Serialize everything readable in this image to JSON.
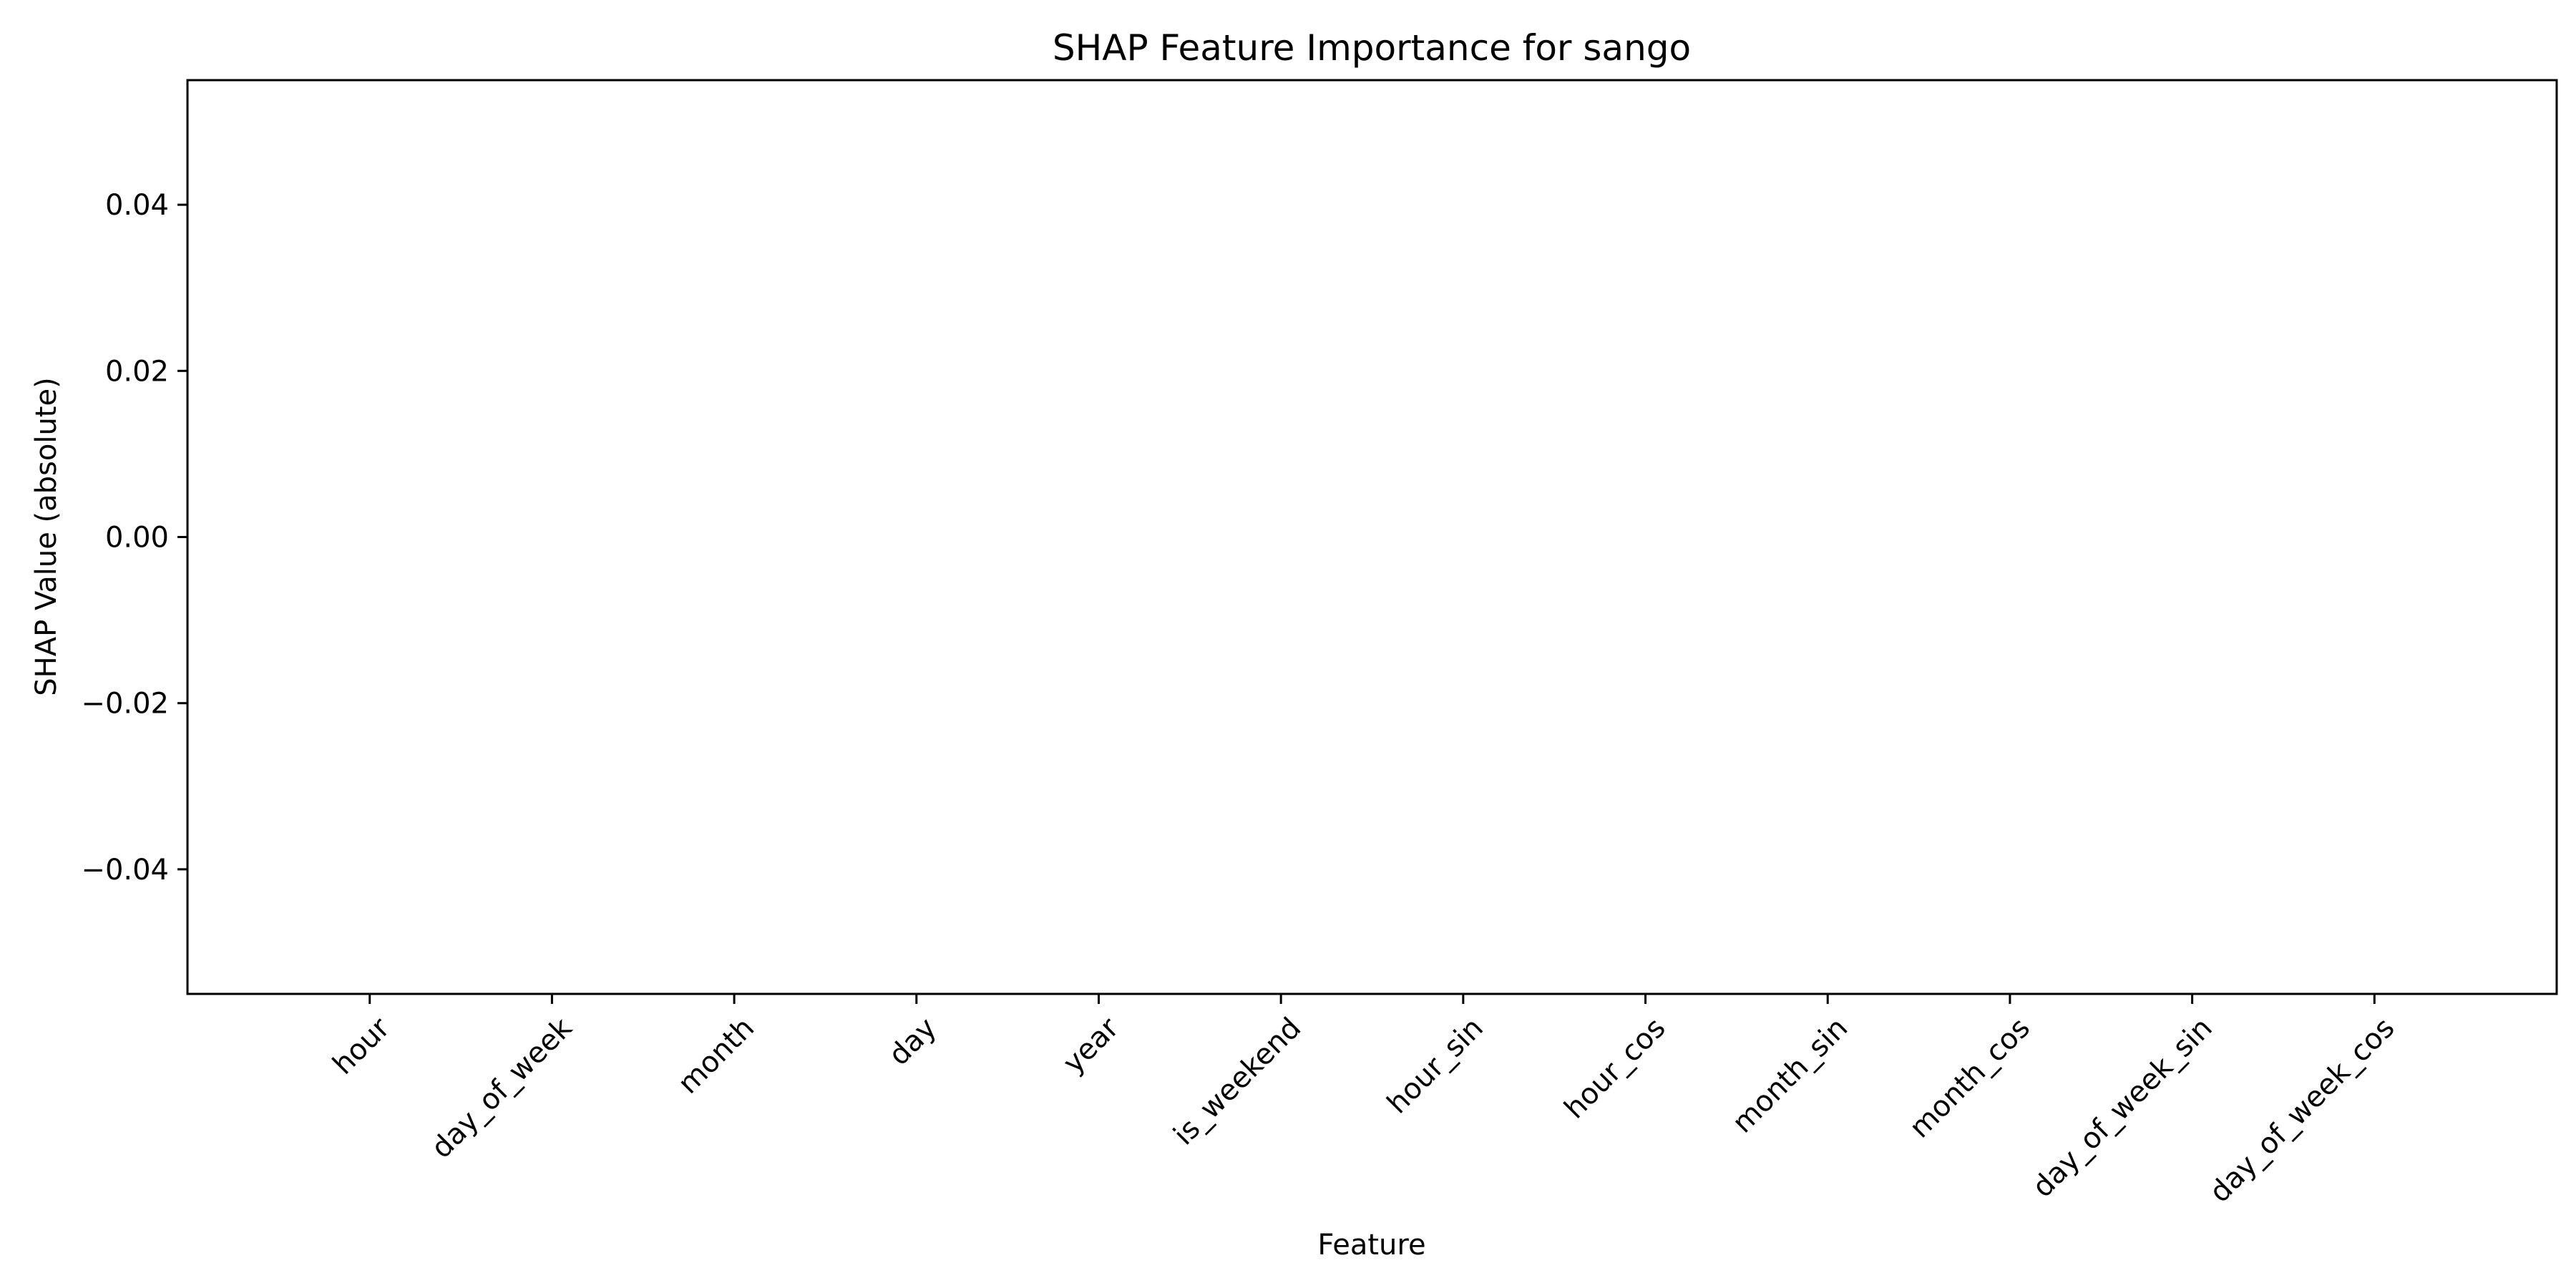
{
  "chart_data": {
    "type": "bar",
    "title": "SHAP Feature Importance for sango",
    "xlabel": "Feature",
    "ylabel": "SHAP Value (absolute)",
    "categories": [
      "hour",
      "day_of_week",
      "month",
      "day",
      "year",
      "is_weekend",
      "hour_sin",
      "hour_cos",
      "month_sin",
      "month_cos",
      "day_of_week_sin",
      "day_of_week_cos"
    ],
    "values": [
      0,
      0,
      0,
      0,
      0,
      0,
      0,
      0,
      0,
      0,
      0,
      0
    ],
    "ylim": [
      -0.055,
      0.055
    ],
    "yticks": [
      -0.04,
      -0.02,
      0.0,
      0.02,
      0.04
    ],
    "ytick_labels": [
      "−0.04",
      "−0.02",
      "0.00",
      "0.02",
      "0.04"
    ],
    "xlim": [
      -1,
      12
    ],
    "grid": false,
    "legend": false,
    "bar_color": "#1f77b4"
  }
}
